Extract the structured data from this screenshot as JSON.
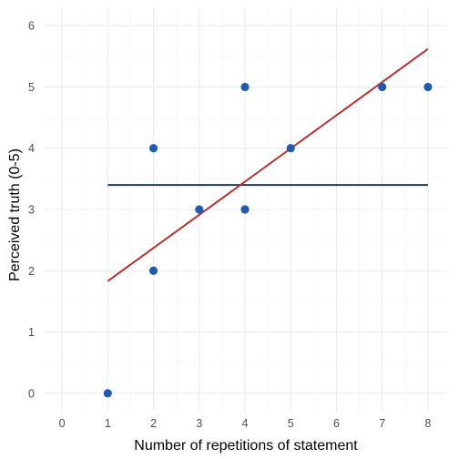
{
  "chart_data": {
    "type": "scatter",
    "title": "",
    "xlabel": "Number of repetitions of statement",
    "ylabel": "Perceived truth (0-5)",
    "xlim": [
      -0.4,
      8.4
    ],
    "ylim": [
      -0.3,
      6.3
    ],
    "x_ticks": [
      0,
      1,
      2,
      3,
      4,
      5,
      6,
      7,
      8
    ],
    "y_ticks": [
      0,
      1,
      2,
      3,
      4,
      5,
      6
    ],
    "grid": true,
    "points": [
      {
        "x": 1,
        "y": 0
      },
      {
        "x": 2,
        "y": 2
      },
      {
        "x": 2,
        "y": 4
      },
      {
        "x": 3,
        "y": 3
      },
      {
        "x": 4,
        "y": 3
      },
      {
        "x": 4,
        "y": 5
      },
      {
        "x": 5,
        "y": 4
      },
      {
        "x": 7,
        "y": 5
      },
      {
        "x": 8,
        "y": 5
      }
    ],
    "lines": [
      {
        "kind": "mean",
        "color": "#1f3b57",
        "x": [
          1,
          8
        ],
        "y": [
          3.4,
          3.4
        ]
      },
      {
        "kind": "regression",
        "color": "#b5312e",
        "x": [
          1,
          8
        ],
        "y": [
          1.83,
          5.62
        ]
      }
    ],
    "colors": {
      "points": "#1f5bb0"
    }
  }
}
